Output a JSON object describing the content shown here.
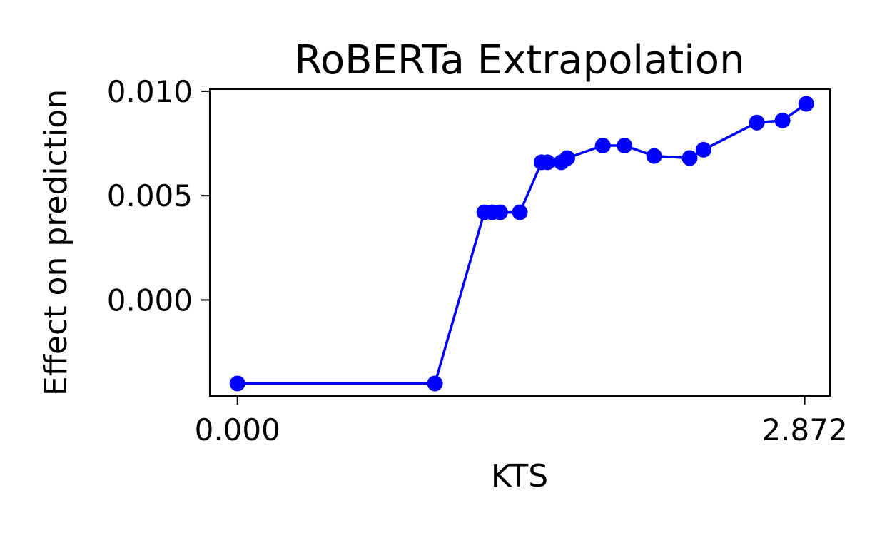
{
  "chart_data": {
    "type": "line",
    "title": "RoBERTa Extrapolation",
    "xlabel": "KTS",
    "ylabel": "Effect on prediction",
    "xlim": [
      -0.14,
      3.0
    ],
    "ylim": [
      -0.0046,
      0.0101
    ],
    "x_ticks": [
      {
        "value": 0.0,
        "label": "0.000"
      },
      {
        "value": 2.872,
        "label": "2.872"
      }
    ],
    "y_ticks": [
      {
        "value": 0.0,
        "label": "0.000"
      },
      {
        "value": 0.005,
        "label": "0.005"
      },
      {
        "value": 0.01,
        "label": "0.010"
      }
    ],
    "grid": false,
    "legend": "none",
    "series": [
      {
        "color": "#0000ff",
        "marker": "circle",
        "points": [
          {
            "x": 0.0,
            "y": -0.004
          },
          {
            "x": 1.0,
            "y": -0.004
          },
          {
            "x": 1.25,
            "y": 0.0042
          },
          {
            "x": 1.29,
            "y": 0.0042
          },
          {
            "x": 1.33,
            "y": 0.0042
          },
          {
            "x": 1.43,
            "y": 0.0042
          },
          {
            "x": 1.54,
            "y": 0.0066
          },
          {
            "x": 1.57,
            "y": 0.0066
          },
          {
            "x": 1.64,
            "y": 0.0066
          },
          {
            "x": 1.67,
            "y": 0.0068
          },
          {
            "x": 1.85,
            "y": 0.0074
          },
          {
            "x": 1.96,
            "y": 0.0074
          },
          {
            "x": 2.11,
            "y": 0.0069
          },
          {
            "x": 2.29,
            "y": 0.0068
          },
          {
            "x": 2.36,
            "y": 0.0072
          },
          {
            "x": 2.63,
            "y": 0.0085
          },
          {
            "x": 2.76,
            "y": 0.0086
          },
          {
            "x": 2.88,
            "y": 0.0094
          }
        ]
      }
    ]
  }
}
